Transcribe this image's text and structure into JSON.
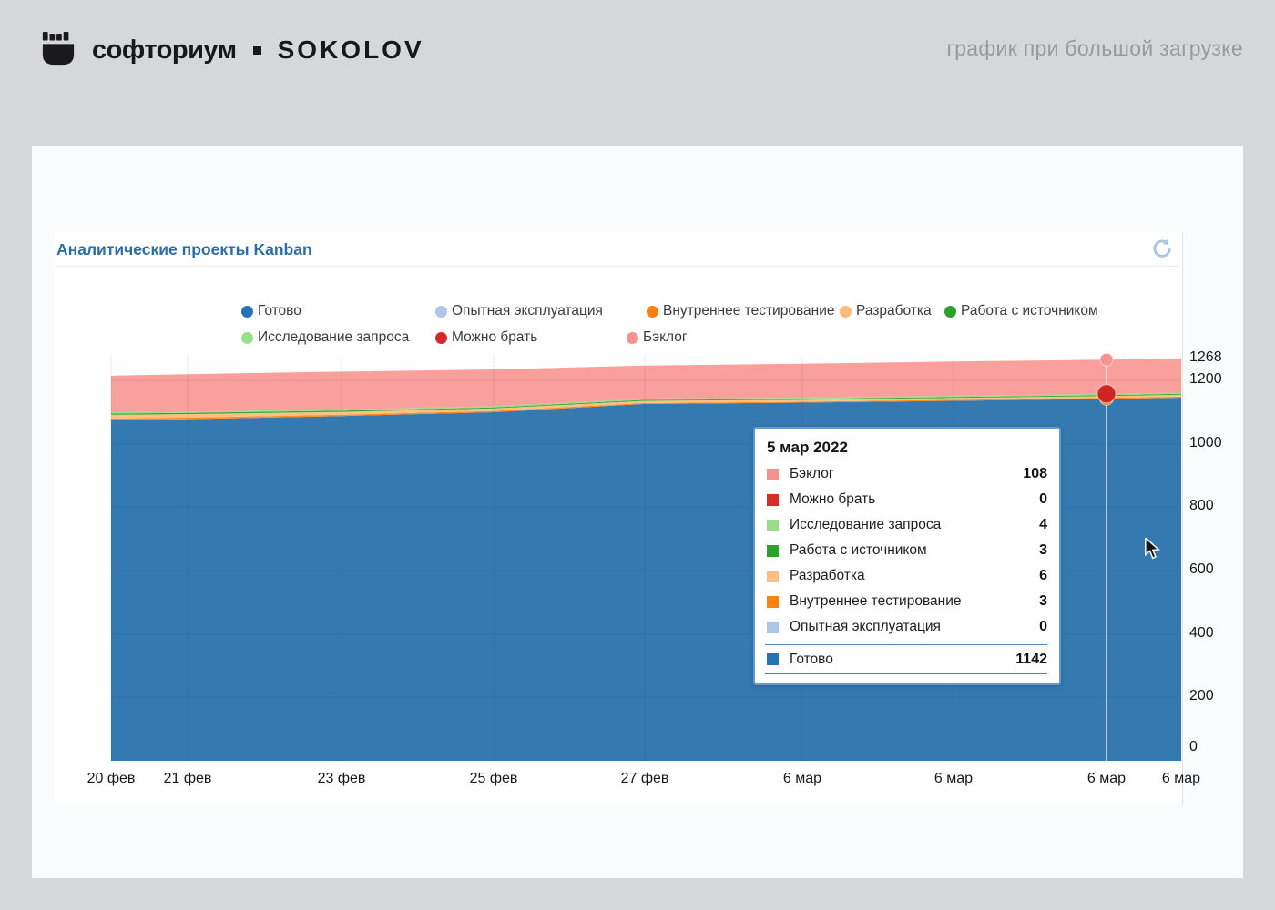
{
  "header": {
    "logo": "fist-icon",
    "brand": "софториум",
    "brand_secondary": "SOKOLOV",
    "subtitle": "график при большой загрузке"
  },
  "widget": {
    "title": "Аналитические проекты Kanban",
    "refresh_icon": "refresh-icon"
  },
  "chart_data": {
    "type": "area",
    "stacked": true,
    "title": "Аналитические проекты Kanban",
    "legend_position": "top",
    "grid": true,
    "ylim": [
      0,
      1268
    ],
    "x_labels": [
      "20 фев",
      "21 фев",
      "23 фев",
      "25 фев",
      "27 фев",
      "6 мар",
      "6 мар",
      "6 мар",
      "6 мар"
    ],
    "y_tick_values": [
      0,
      200,
      400,
      600,
      800,
      1000,
      1200,
      1268
    ],
    "y_tick_labels": [
      "0",
      "200",
      "400",
      "600",
      "800",
      "1000",
      "1200",
      "1268"
    ],
    "legend_order": [
      "Готово",
      "Опытная эксплуатация",
      "Внутреннее тестирование",
      "Разработка",
      "Работа с источником",
      "Исследование запроса",
      "Можно брать",
      "Бэклог"
    ],
    "series": [
      {
        "name": "Готово",
        "color": "#2473b2",
        "fill": "#3579b1",
        "values": [
          1075,
          1078,
          1088,
          1100,
          1126,
          1130,
          1136,
          1142,
          1146
        ]
      },
      {
        "name": "Опытная эксплуатация",
        "color": "#aec7e8",
        "fill": "#aec7e8",
        "values": [
          0,
          0,
          0,
          0,
          0,
          0,
          0,
          0,
          0
        ]
      },
      {
        "name": "Внутреннее тестирование",
        "color": "#ff7f0e",
        "fill": "#ff8a1e",
        "values": [
          5,
          5,
          4,
          4,
          3,
          3,
          3,
          3,
          3
        ]
      },
      {
        "name": "Разработка",
        "color": "#ffbb78",
        "fill": "#ffc083",
        "values": [
          12,
          11,
          9,
          8,
          7,
          6,
          6,
          6,
          6
        ]
      },
      {
        "name": "Работа с источником",
        "color": "#2ca02c",
        "fill": "#39a839",
        "values": [
          4,
          4,
          4,
          3,
          3,
          3,
          3,
          3,
          3
        ]
      },
      {
        "name": "Исследование запроса",
        "color": "#98df8a",
        "fill": "#9ddb90",
        "values": [
          4,
          4,
          4,
          4,
          4,
          4,
          4,
          4,
          4
        ]
      },
      {
        "name": "Можно брать",
        "color": "#d62728",
        "fill": "#d62728",
        "values": [
          0,
          0,
          0,
          0,
          0,
          0,
          0,
          0,
          0
        ]
      },
      {
        "name": "Бэклог",
        "color": "#f8918f",
        "fill": "#f99f9c",
        "values": [
          115,
          118,
          119,
          116,
          104,
          107,
          108,
          108,
          106
        ]
      }
    ],
    "hover": {
      "date": "5 мар 2022",
      "x_index": 7,
      "markers": [
        {
          "name": "Бэклог",
          "value_cum": 1266,
          "color": "#f8918f",
          "r": 7
        },
        {
          "name": "Внутреннее тестирование",
          "value_cum": 1145,
          "color": "#f58220",
          "r": 8
        },
        {
          "name": "Можно брать",
          "value_cum": 1158,
          "color": "#cf2623",
          "r": 10
        }
      ]
    }
  },
  "tooltip": {
    "date": "5 мар 2022",
    "rows": [
      {
        "label": "Бэклог",
        "value": "108",
        "color": "#f4918e"
      },
      {
        "label": "Можно брать",
        "value": "0",
        "color": "#d62d28"
      },
      {
        "label": "Исследование запроса",
        "value": "4",
        "color": "#97dd88"
      },
      {
        "label": "Работа с источником",
        "value": "3",
        "color": "#2ba02b"
      },
      {
        "label": "Разработка",
        "value": "6",
        "color": "#ffc07f"
      },
      {
        "label": "Внутреннее тестирование",
        "value": "3",
        "color": "#ff8111"
      },
      {
        "label": "Опытная эксплуатация",
        "value": "0",
        "color": "#adc6e6"
      }
    ],
    "total_row": {
      "label": "Готово",
      "value": "1142",
      "color": "#2473b2"
    }
  }
}
